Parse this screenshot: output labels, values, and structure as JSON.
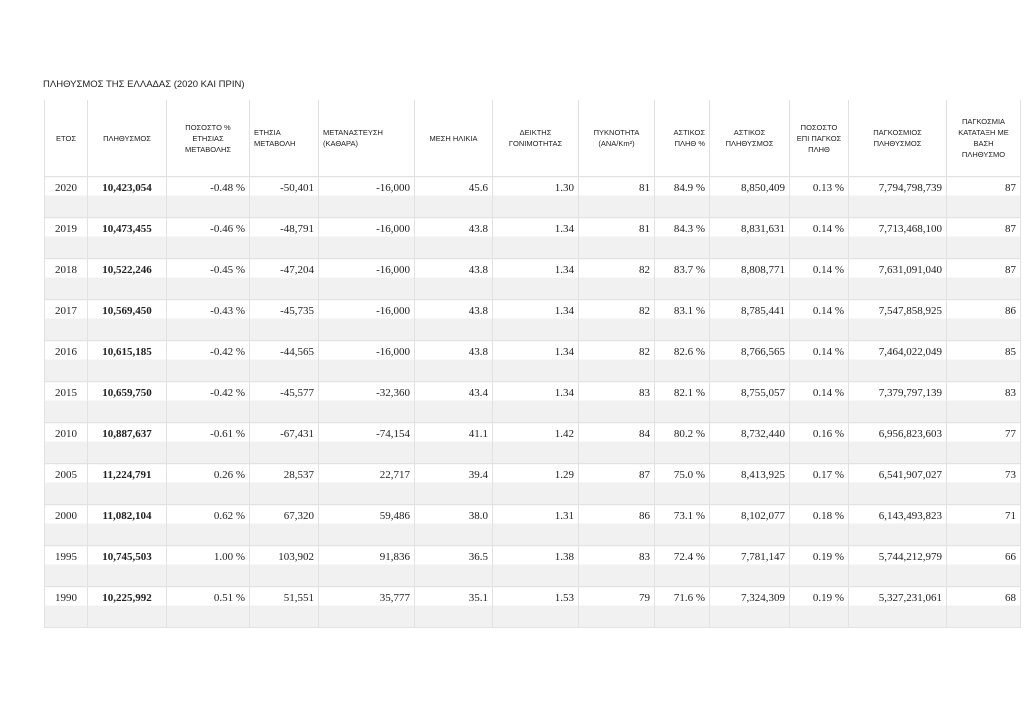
{
  "header": {
    "title": "ΠΛΗΘΥΣΜΟΣ ΤΗΣ ΕΛΛΑΔΑΣ (2020 ΚΑΙ ΠΡΙΝ)"
  },
  "table": {
    "columns": [
      "ΕΤΟΣ",
      "ΠΛΗΘΥΣΜΟΣ",
      "ΠΟΣΟΣΤΟ % ΕΤΗΣΙΑΣ ΜΕΤΑΒΟΛΗΣ",
      "ΕΤΗΣΙΑ ΜΕΤΑΒΟΛΗ",
      "ΜΕΤΑΝΑΣΤΕΥΣΗ (ΚΑΘΑΡΑ)",
      "ΜΕΣΗ ΗΛΙΚΙΑ",
      "ΔΕΙΚΤΗΣ ΓΟΝΙΜΟΤΗΤΑΣ",
      "ΠΥΚΝΟΤΗΤΑ (ΑΝΑ/Km²)",
      "ΑΣΤΙΚΟΣ ΠΛΗΘ %",
      "ΑΣΤΙΚΟΣ ΠΛΗΘΥΣΜΟΣ",
      "ΠΟΣΟΣΤΟ ΕΠΙ ΠΑΓΚΟΣ ΠΛΗΘ",
      "ΠΑΓΚΟΣΜΙΟΣ ΠΛΗΘΥΣΜΟΣ",
      "ΠΑΓΚΟΣΜΙΑ ΚΑΤΑΤΑΞΗ ΜΕ ΒΑΣΗ ΠΛΗΘΥΣΜΟ"
    ],
    "rows": [
      [
        "2020",
        "10,423,054",
        "-0.48 %",
        "-50,401",
        "-16,000",
        "45.6",
        "1.30",
        "81",
        "84.9 %",
        "8,850,409",
        "0.13 %",
        "7,794,798,739",
        "87"
      ],
      [
        "2019",
        "10,473,455",
        "-0.46 %",
        "-48,791",
        "-16,000",
        "43.8",
        "1.34",
        "81",
        "84.3 %",
        "8,831,631",
        "0.14 %",
        "7,713,468,100",
        "87"
      ],
      [
        "2018",
        "10,522,246",
        "-0.45 %",
        "-47,204",
        "-16,000",
        "43.8",
        "1.34",
        "82",
        "83.7 %",
        "8,808,771",
        "0.14 %",
        "7,631,091,040",
        "87"
      ],
      [
        "2017",
        "10,569,450",
        "-0.43 %",
        "-45,735",
        "-16,000",
        "43.8",
        "1.34",
        "82",
        "83.1 %",
        "8,785,441",
        "0.14 %",
        "7,547,858,925",
        "86"
      ],
      [
        "2016",
        "10,615,185",
        "-0.42 %",
        "-44,565",
        "-16,000",
        "43.8",
        "1.34",
        "82",
        "82.6 %",
        "8,766,565",
        "0.14 %",
        "7,464,022,049",
        "85"
      ],
      [
        "2015",
        "10,659,750",
        "-0.42 %",
        "-45,577",
        "-32,360",
        "43.4",
        "1.34",
        "83",
        "82.1 %",
        "8,755,057",
        "0.14 %",
        "7,379,797,139",
        "83"
      ],
      [
        "2010",
        "10,887,637",
        "-0.61 %",
        "-67,431",
        "-74,154",
        "41.1",
        "1.42",
        "84",
        "80.2 %",
        "8,732,440",
        "0.16 %",
        "6,956,823,603",
        "77"
      ],
      [
        "2005",
        "11,224,791",
        "0.26 %",
        "28,537",
        "22,717",
        "39.4",
        "1.29",
        "87",
        "75.0 %",
        "8,413,925",
        "0.17 %",
        "6,541,907,027",
        "73"
      ],
      [
        "2000",
        "11,082,104",
        "0.62 %",
        "67,320",
        "59,486",
        "38.0",
        "1.31",
        "86",
        "73.1 %",
        "8,102,077",
        "0.18 %",
        "6,143,493,823",
        "71"
      ],
      [
        "1995",
        "10,745,503",
        "1.00 %",
        "103,902",
        "91,836",
        "36.5",
        "1.38",
        "83",
        "72.4 %",
        "7,781,147",
        "0.19 %",
        "5,744,212,979",
        "66"
      ],
      [
        "1990",
        "10,225,992",
        "0.51 %",
        "51,551",
        "35,777",
        "35.1",
        "1.53",
        "79",
        "71.6 %",
        "7,324,309",
        "0.19 %",
        "5,327,231,061",
        "68"
      ]
    ]
  }
}
